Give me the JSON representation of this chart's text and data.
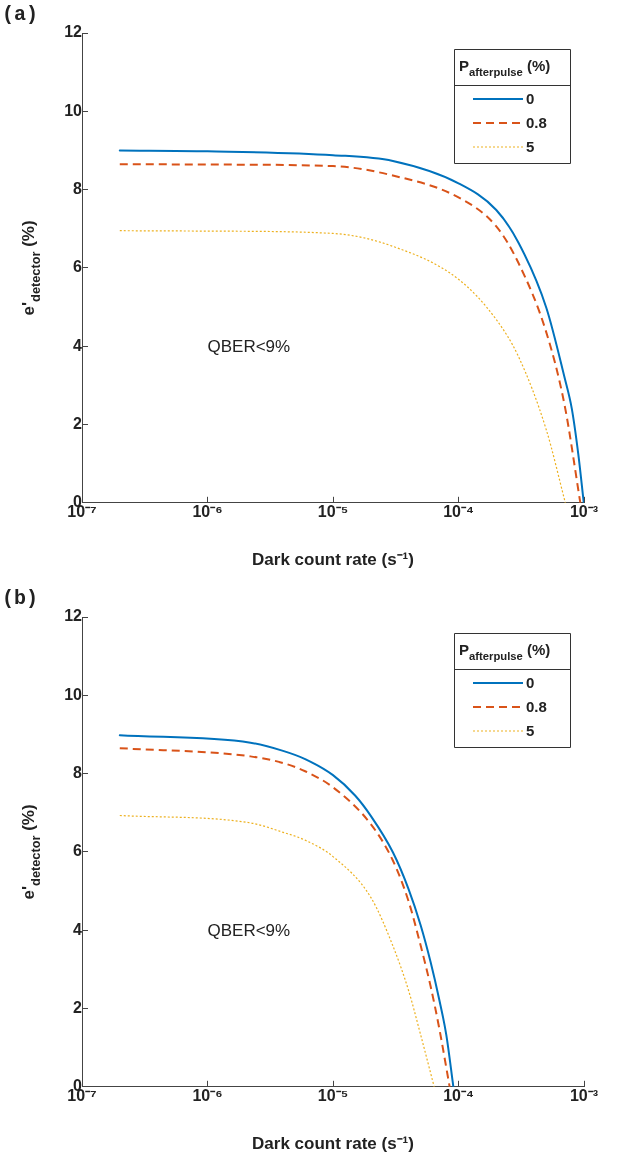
{
  "chart_data": [
    {
      "type": "line",
      "title": "(a)",
      "xlabel": "Dark count rate (s⁻¹)",
      "ylabel": "e'$_{detector}$ (%)",
      "legend_title": "P$_{afterpulse}$ (%)",
      "legend": "top right",
      "log": "x",
      "grid": false,
      "xlim": [
        1e-07,
        0.001
      ],
      "xticks": [
        {
          "value": 1e-07,
          "label": "10⁻⁷"
        },
        {
          "value": 1e-06,
          "label": "10⁻⁶"
        },
        {
          "value": 1e-05,
          "label": "10⁻⁵"
        },
        {
          "value": 0.0001,
          "label": "10⁻⁴"
        },
        {
          "value": 0.001,
          "label": "10⁻³"
        }
      ],
      "ylim": [
        0,
        12
      ],
      "yticks": [
        0,
        2,
        4,
        6,
        8,
        10,
        12
      ],
      "annotations": [
        "QBER<9%"
      ],
      "series": [
        {
          "name": "0",
          "color": "#0072bd",
          "line_style": "solid",
          "x": [
            2e-07,
            1e-06,
            1e-05,
            3e-05,
            0.0001,
            0.0002,
            0.0003,
            0.0005,
            0.0007,
            0.0008,
            0.0009,
            0.000996
          ],
          "values": [
            9.0,
            8.98,
            8.88,
            8.73,
            8.16,
            7.48,
            6.65,
            4.99,
            3.2,
            2.4,
            1.25,
            0
          ]
        },
        {
          "name": "0.8",
          "color": "#d95319",
          "line_style": "dashed",
          "x": [
            2e-07,
            1e-06,
            1e-05,
            3e-05,
            0.0001,
            0.0002,
            0.0003,
            0.0005,
            0.0007,
            0.000935
          ],
          "values": [
            8.65,
            8.64,
            8.6,
            8.36,
            7.8,
            7.06,
            6.13,
            4.36,
            2.5,
            0
          ]
        },
        {
          "name": "5",
          "color": "#edb120",
          "line_style": "dotted",
          "x": [
            2e-07,
            1e-06,
            1e-05,
            3e-05,
            0.0001,
            0.0002,
            0.0003,
            0.0005,
            0.00071
          ],
          "values": [
            6.95,
            6.94,
            6.88,
            6.55,
            5.71,
            4.68,
            3.74,
            1.87,
            0
          ]
        }
      ]
    },
    {
      "type": "line",
      "title": "(b)",
      "xlabel": "Dark count rate (s⁻¹)",
      "ylabel": "e'$_{detector}$ (%)",
      "legend_title": "P$_{afterpulse}$ (%)",
      "legend": "top right",
      "log": "x",
      "grid": false,
      "xlim": [
        1e-07,
        0.001
      ],
      "xticks": [
        {
          "value": 1e-07,
          "label": "10⁻⁷"
        },
        {
          "value": 1e-06,
          "label": "10⁻⁶"
        },
        {
          "value": 1e-05,
          "label": "10⁻⁵"
        },
        {
          "value": 0.0001,
          "label": "10⁻⁴"
        },
        {
          "value": 0.001,
          "label": "10⁻³"
        }
      ],
      "ylim": [
        0,
        12
      ],
      "yticks": [
        0,
        2,
        4,
        6,
        8,
        10,
        12
      ],
      "annotations": [
        "QBER<9%"
      ],
      "series": [
        {
          "name": "0",
          "color": "#0072bd",
          "line_style": "solid",
          "x": [
            2e-07,
            2.2e-06,
            4e-06,
            6e-06,
            1e-05,
            1.5e-05,
            2e-05,
            3e-05,
            4e-05,
            5e-05,
            6e-05,
            7e-05,
            8e-05,
            9.1e-05
          ],
          "values": [
            8.98,
            8.79,
            8.58,
            8.37,
            7.96,
            7.44,
            6.92,
            5.99,
            5.05,
            4.12,
            3.18,
            2.25,
            1.32,
            0
          ]
        },
        {
          "name": "0.8",
          "color": "#d95319",
          "line_style": "dashed",
          "x": [
            2e-07,
            2.2e-06,
            4e-06,
            6e-06,
            1e-05,
            2e-05,
            3e-05,
            4e-05,
            5e-05,
            6e-05,
            7e-05,
            8.5e-05
          ],
          "values": [
            8.65,
            8.44,
            8.27,
            8.06,
            7.65,
            6.71,
            5.78,
            4.74,
            3.6,
            2.56,
            1.52,
            0
          ]
        },
        {
          "name": "5",
          "color": "#edb120",
          "line_style": "dotted",
          "x": [
            2e-07,
            2.2e-06,
            4e-06,
            6e-06,
            1e-05,
            2e-05,
            3e-05,
            4e-05,
            5e-05,
            6.4e-05
          ],
          "values": [
            6.93,
            6.74,
            6.5,
            6.3,
            5.88,
            4.84,
            3.6,
            2.46,
            1.32,
            0
          ]
        }
      ]
    }
  ]
}
